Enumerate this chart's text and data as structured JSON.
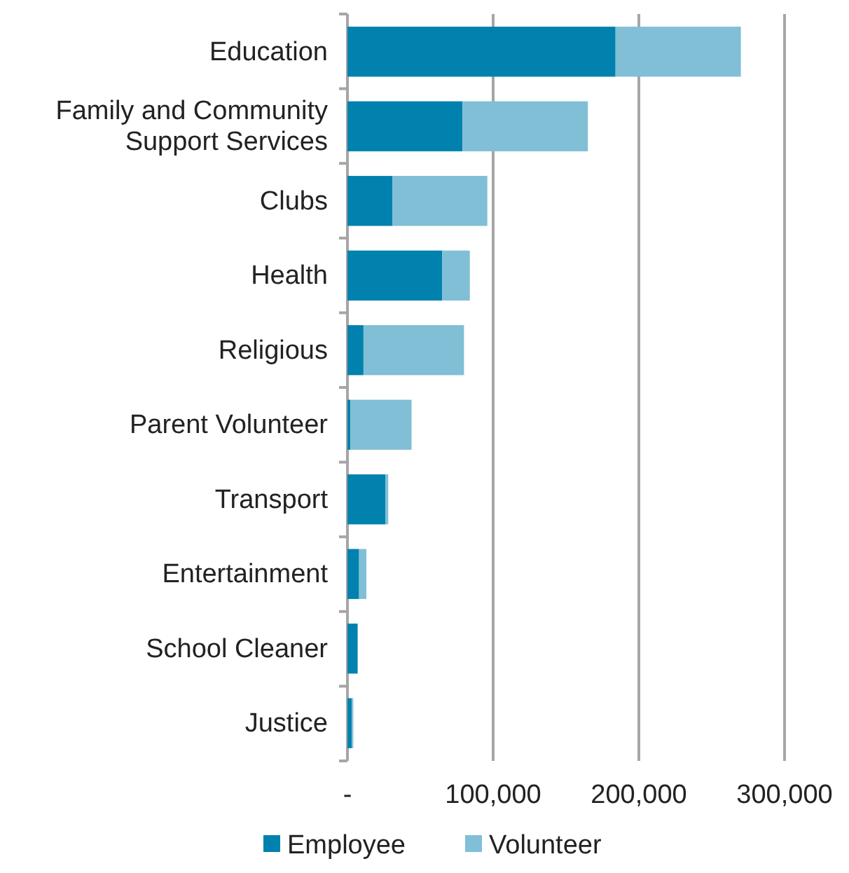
{
  "chart_data": {
    "type": "bar",
    "orientation": "horizontal",
    "stacked": true,
    "categories": [
      "Education",
      "Family and Community Support Services",
      "Clubs",
      "Health",
      "Religious",
      "Parent Volunteer",
      "Transport",
      "Entertainment",
      "School Cleaner",
      "Justice"
    ],
    "series": [
      {
        "name": "Employee",
        "color": "#0081ae",
        "values": [
          184000,
          79000,
          31000,
          65000,
          11000,
          2000,
          26000,
          8000,
          7000,
          3000
        ]
      },
      {
        "name": "Volunteer",
        "color": "#80bfd6",
        "values": [
          86000,
          86000,
          65000,
          19000,
          69000,
          42000,
          2000,
          5000,
          0,
          1000
        ]
      }
    ],
    "xlim": [
      0,
      300000
    ],
    "xticks": [
      {
        "value": 0,
        "label": "-"
      },
      {
        "value": 100000,
        "label": "100,000"
      },
      {
        "value": 200000,
        "label": "200,000"
      },
      {
        "value": 300000,
        "label": "300,000"
      }
    ],
    "grid": "x",
    "legend": "bottom"
  }
}
